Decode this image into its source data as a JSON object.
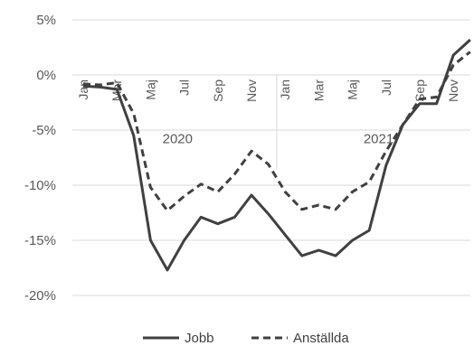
{
  "chart_data": {
    "type": "line",
    "x": [
      "Jan",
      "Feb",
      "Mar",
      "Apr",
      "Maj",
      "Jun",
      "Jul",
      "Aug",
      "Sep",
      "Okt",
      "Nov",
      "Dec",
      "Jan",
      "Feb",
      "Mar",
      "Apr",
      "Maj",
      "Jun",
      "Jul",
      "Aug",
      "Sep",
      "Okt",
      "Nov",
      "Dec"
    ],
    "x_tick_labels": [
      "Jan",
      "Mar",
      "Maj",
      "Jul",
      "Sep",
      "Nov",
      "Jan",
      "Mar",
      "Maj",
      "Jul",
      "Sep",
      "Nov"
    ],
    "year_labels": [
      "2020",
      "2021"
    ],
    "y_tick_labels": [
      "5%",
      "0%",
      "-5%",
      "-10%",
      "-15%",
      "-20%"
    ],
    "ylim": [
      -20,
      5
    ],
    "y_ticks": [
      5,
      0,
      -5,
      -10,
      -15,
      -20
    ],
    "grid": "horizontal",
    "legend_position": "bottom",
    "series": [
      {
        "name": "Jobb",
        "style": "solid",
        "color": "#404040",
        "values": [
          -1.0,
          -1.1,
          -1.3,
          -5.5,
          -15.0,
          -17.7,
          -15.0,
          -12.9,
          -13.5,
          -12.9,
          -10.9,
          -12.6,
          -14.5,
          -16.4,
          -15.9,
          -16.4,
          -15.0,
          -14.1,
          -8.2,
          -4.5,
          -2.6,
          -2.6,
          1.8,
          3.2
        ]
      },
      {
        "name": "Anställda",
        "style": "dashed",
        "color": "#404040",
        "values": [
          -0.8,
          -0.9,
          -0.7,
          -3.5,
          -10.2,
          -12.3,
          -11.0,
          -9.9,
          -10.6,
          -9.0,
          -6.9,
          -8.1,
          -10.6,
          -12.2,
          -11.8,
          -12.2,
          -10.6,
          -9.7,
          -6.9,
          -4.5,
          -2.2,
          -2.0,
          0.9,
          2.1
        ]
      }
    ]
  }
}
